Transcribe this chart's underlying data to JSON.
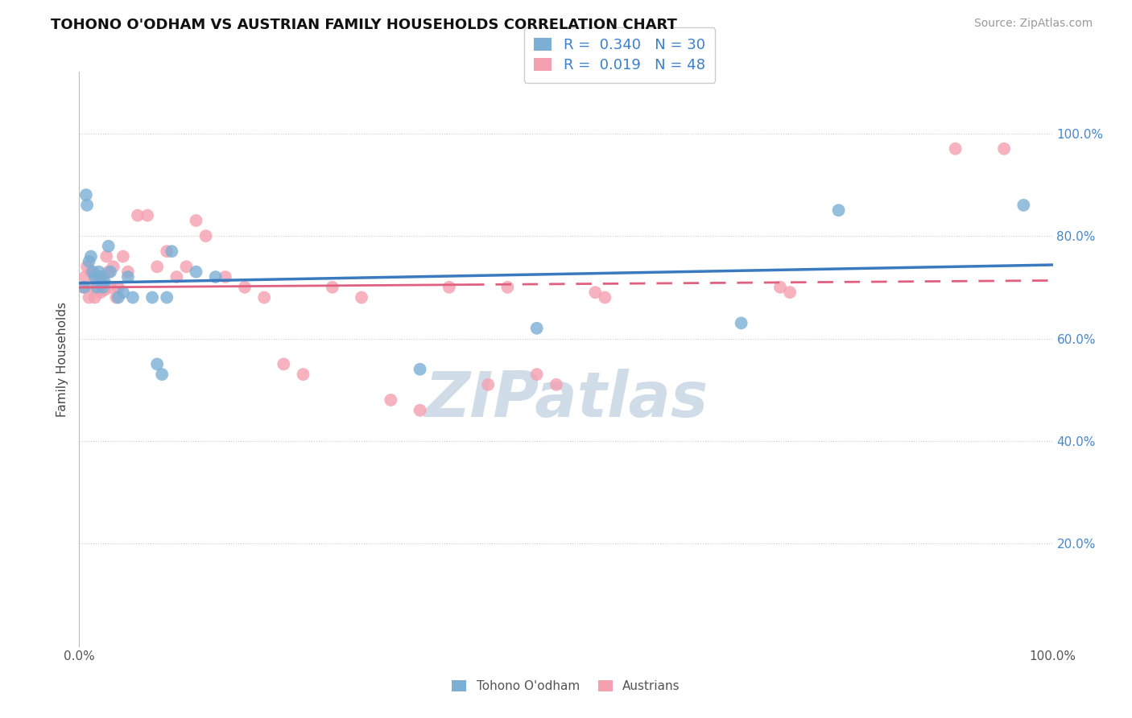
{
  "title": "TOHONO O'ODHAM VS AUSTRIAN FAMILY HOUSEHOLDS CORRELATION CHART",
  "source": "Source: ZipAtlas.com",
  "ylabel": "Family Households",
  "xlim": [
    0.0,
    1.0
  ],
  "ylim": [
    0.0,
    1.12
  ],
  "background_color": "#ffffff",
  "grid_color": "#cccccc",
  "blue_R": 0.34,
  "blue_N": 30,
  "pink_R": 0.019,
  "pink_N": 48,
  "blue_label": "Tohono O'odham",
  "pink_label": "Austrians",
  "blue_color": "#7bafd4",
  "pink_color": "#f4a0b0",
  "blue_line_color": "#3a7abf",
  "pink_line_color": "#e06080",
  "blue_points_x": [
    0.005,
    0.007,
    0.008,
    0.01,
    0.012,
    0.014,
    0.016,
    0.018,
    0.02,
    0.022,
    0.024,
    0.026,
    0.03,
    0.032,
    0.04,
    0.045,
    0.05,
    0.055,
    0.075,
    0.08,
    0.085,
    0.09,
    0.095,
    0.12,
    0.14,
    0.35,
    0.47,
    0.68,
    0.78,
    0.97
  ],
  "blue_points_y": [
    0.7,
    0.88,
    0.86,
    0.75,
    0.76,
    0.73,
    0.72,
    0.7,
    0.73,
    0.72,
    0.7,
    0.71,
    0.78,
    0.73,
    0.68,
    0.69,
    0.72,
    0.68,
    0.68,
    0.55,
    0.53,
    0.68,
    0.77,
    0.73,
    0.72,
    0.54,
    0.62,
    0.63,
    0.85,
    0.86
  ],
  "pink_points_x": [
    0.004,
    0.006,
    0.008,
    0.01,
    0.012,
    0.014,
    0.016,
    0.018,
    0.02,
    0.022,
    0.024,
    0.026,
    0.028,
    0.03,
    0.032,
    0.035,
    0.038,
    0.04,
    0.045,
    0.05,
    0.06,
    0.07,
    0.08,
    0.09,
    0.1,
    0.11,
    0.12,
    0.13,
    0.15,
    0.17,
    0.19,
    0.21,
    0.23,
    0.26,
    0.29,
    0.32,
    0.35,
    0.38,
    0.42,
    0.44,
    0.47,
    0.49,
    0.53,
    0.54,
    0.72,
    0.73,
    0.9,
    0.95
  ],
  "pink_points_y": [
    0.7,
    0.72,
    0.74,
    0.68,
    0.73,
    0.7,
    0.68,
    0.72,
    0.71,
    0.69,
    0.72,
    0.695,
    0.76,
    0.73,
    0.7,
    0.74,
    0.68,
    0.7,
    0.76,
    0.73,
    0.84,
    0.84,
    0.74,
    0.77,
    0.72,
    0.74,
    0.83,
    0.8,
    0.72,
    0.7,
    0.68,
    0.55,
    0.53,
    0.7,
    0.68,
    0.48,
    0.46,
    0.7,
    0.51,
    0.7,
    0.53,
    0.51,
    0.69,
    0.68,
    0.7,
    0.69,
    0.97,
    0.97
  ],
  "watermark": "ZIPatlas",
  "watermark_color": "#d0dce8",
  "legend_border_color": "#cccccc",
  "pink_line_split_x": 0.4
}
